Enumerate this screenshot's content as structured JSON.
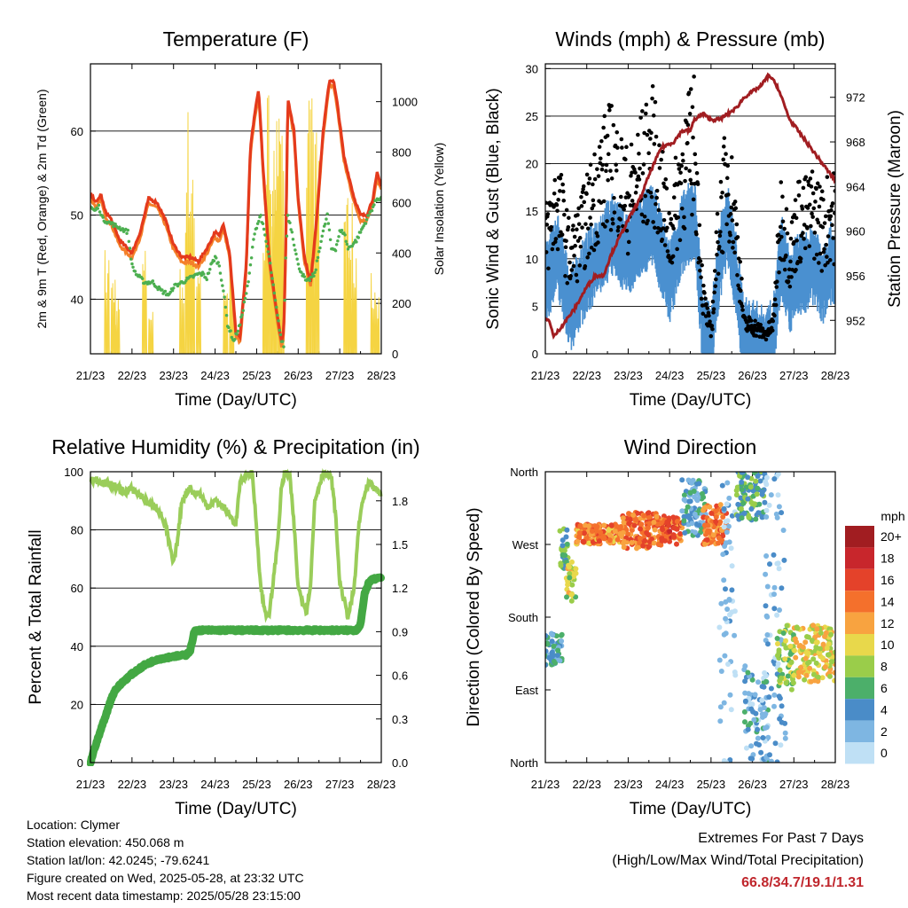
{
  "time_ticks": [
    "21/23",
    "22/23",
    "23/23",
    "24/23",
    "25/23",
    "26/23",
    "27/23",
    "28/23"
  ],
  "colors": {
    "temp_2m": "#e43a1c",
    "temp_9m": "#f4802a",
    "dewpoint": "#4caf50",
    "solar": "#f5d442",
    "wind": "#4a90d0",
    "gust": "#000000",
    "pressure": "#a11d21",
    "rh": "#9acd5a",
    "rain": "#43a843",
    "extremes": "#c0272d"
  },
  "chart_data": [
    {
      "type": "line",
      "title": "Temperature (F)",
      "xlabel": "Time (Day/UTC)",
      "ylabel": "2m & 9m T (Red, Orange) & 2m Td (Green)",
      "ylabel_right": "Solar Insolation (Yellow)",
      "xlim": [
        0,
        7
      ],
      "ylim": [
        33.5,
        68
      ],
      "ylim_right": [
        0,
        1150
      ],
      "yticks": [
        40,
        50,
        60
      ],
      "yticks_right": [
        0,
        200,
        400,
        600,
        800,
        1000
      ],
      "grid": true,
      "series": [
        {
          "key": "temp",
          "x": [
            0,
            0.15,
            0.25,
            0.35,
            0.5,
            0.7,
            0.9,
            1.0,
            1.2,
            1.4,
            1.6,
            1.8,
            2.0,
            2.2,
            2.4,
            2.6,
            2.8,
            3.0,
            3.1,
            3.2,
            3.35,
            3.5,
            3.6,
            3.75,
            3.85,
            3.95,
            4.05,
            4.15,
            4.3,
            4.5,
            4.6,
            4.65,
            4.7,
            4.75,
            4.9,
            5.0,
            5.15,
            5.3,
            5.45,
            5.6,
            5.75,
            5.85,
            5.95,
            6.1,
            6.25,
            6.35,
            6.5,
            6.65,
            6.8,
            6.9,
            7.0
          ],
          "y": [
            52.5,
            51.5,
            52.5,
            50.5,
            49.5,
            47,
            46,
            45.5,
            48,
            52,
            51.5,
            49.5,
            46.5,
            45,
            45,
            44.5,
            46,
            48,
            47.5,
            49,
            45.5,
            36,
            35.5,
            44,
            58,
            62,
            65,
            56,
            45,
            38,
            35,
            36,
            46,
            64,
            60,
            52,
            45,
            42,
            50,
            60,
            66,
            66,
            63,
            57,
            54,
            52,
            50,
            50,
            52,
            55,
            53.5
          ]
        },
        {
          "key": "dewpoint",
          "x": [
            0,
            0.1,
            0.2,
            0.3,
            0.5,
            0.7,
            0.9,
            1.0,
            1.1,
            1.3,
            1.5,
            1.7,
            1.9,
            2.0,
            2.2,
            2.4,
            2.6,
            2.7,
            2.8,
            2.9,
            3.0,
            3.1,
            3.2,
            3.3,
            3.45,
            3.6,
            3.8,
            3.95,
            4.1,
            4.3,
            4.5,
            4.6,
            4.65,
            4.7,
            4.75,
            4.85,
            5.0,
            5.2,
            5.4,
            5.55,
            5.7,
            5.8,
            5.9,
            6.0,
            6.1,
            6.2,
            6.4,
            6.6,
            6.8,
            6.9,
            7.0
          ],
          "y": [
            51,
            50.5,
            51,
            49.5,
            49,
            48.5,
            48,
            44,
            43,
            42,
            42,
            41,
            40.5,
            41.5,
            42,
            42.5,
            43,
            43,
            42.5,
            44,
            45,
            44,
            41,
            37,
            35,
            37,
            42,
            48,
            50,
            45,
            38,
            35,
            34.5,
            45,
            50,
            48,
            44,
            42,
            43,
            47,
            50,
            46,
            46,
            48,
            48,
            46,
            47,
            49,
            51,
            52,
            52
          ]
        }
      ],
      "solar_peaks": [
        {
          "x": 0.4,
          "y": 430
        },
        {
          "x": 0.55,
          "y": 350
        },
        {
          "x": 0.65,
          "y": 240
        },
        {
          "x": 1.3,
          "y": 430
        },
        {
          "x": 1.45,
          "y": 220
        },
        {
          "x": 2.2,
          "y": 360
        },
        {
          "x": 2.33,
          "y": 1000
        },
        {
          "x": 2.45,
          "y": 930
        },
        {
          "x": 2.6,
          "y": 380
        },
        {
          "x": 3.25,
          "y": 360
        },
        {
          "x": 3.4,
          "y": 340
        },
        {
          "x": 4.2,
          "y": 700
        },
        {
          "x": 4.3,
          "y": 1080
        },
        {
          "x": 4.4,
          "y": 1120
        },
        {
          "x": 4.5,
          "y": 980
        },
        {
          "x": 4.6,
          "y": 880
        },
        {
          "x": 5.25,
          "y": 1150
        },
        {
          "x": 5.35,
          "y": 1060
        },
        {
          "x": 5.45,
          "y": 900
        },
        {
          "x": 6.15,
          "y": 780
        },
        {
          "x": 6.25,
          "y": 600
        },
        {
          "x": 6.35,
          "y": 500
        },
        {
          "x": 6.8,
          "y": 330
        },
        {
          "x": 6.9,
          "y": 300
        }
      ]
    },
    {
      "type": "line",
      "title": "Winds (mph) & Pressure (mb)",
      "xlabel": "Time (Day/UTC)",
      "ylabel": "Sonic Wind & Gust (Blue, Black)",
      "ylabel_right": "Station Pressure (Maroon)",
      "xlim": [
        0,
        7
      ],
      "ylim": [
        0,
        30.5
      ],
      "ylim_right": [
        949,
        975
      ],
      "yticks": [
        0,
        5,
        10,
        15,
        20,
        25,
        30
      ],
      "yticks_right": [
        952,
        956,
        960,
        964,
        968,
        972
      ],
      "grid": true,
      "series": [
        {
          "key": "pressure",
          "x": [
            0,
            0.1,
            0.2,
            0.3,
            0.5,
            0.7,
            1.0,
            1.2,
            1.4,
            1.6,
            1.8,
            2.0,
            2.3,
            2.5,
            2.8,
            3.1,
            3.3,
            3.5,
            3.6,
            3.8,
            4.0,
            4.2,
            4.4,
            4.6,
            4.8,
            5.0,
            5.2,
            5.4,
            5.6,
            5.8,
            5.9,
            6.1,
            6.3,
            6.5,
            6.7,
            6.9,
            7.0
          ],
          "y": [
            952,
            952,
            950.5,
            951,
            952,
            953,
            955,
            956,
            956,
            958,
            959.5,
            961,
            963,
            965,
            967.5,
            968,
            969,
            969,
            970,
            970.5,
            970,
            970,
            970.5,
            971,
            972,
            972.5,
            973,
            974,
            973,
            971,
            970,
            969,
            968,
            967,
            966,
            965,
            964.5
          ]
        },
        {
          "key": "wind_mean",
          "x": [
            0,
            0.3,
            0.6,
            1.0,
            1.3,
            1.6,
            2.0,
            2.3,
            2.6,
            3.0,
            3.3,
            3.6,
            3.8,
            4.0,
            4.2,
            4.4,
            4.6,
            4.8,
            5.0,
            5.3,
            5.5,
            5.7,
            5.9,
            6.1,
            6.3,
            6.5,
            6.7,
            6.9,
            7.0
          ],
          "y": [
            8,
            11,
            5,
            9,
            11,
            13,
            11,
            13,
            14,
            8,
            13,
            15,
            3,
            1,
            10,
            14,
            9,
            2,
            2,
            1,
            2,
            11,
            7,
            9,
            9,
            10,
            8,
            10,
            9
          ]
        },
        {
          "key": "gust_mean",
          "x": [
            0,
            0.3,
            0.6,
            1.0,
            1.3,
            1.6,
            2.0,
            2.3,
            2.6,
            3.0,
            3.3,
            3.6,
            3.8,
            4.0,
            4.2,
            4.4,
            4.6,
            4.8,
            5.0,
            5.3,
            5.5,
            5.7,
            5.9,
            6.1,
            6.3,
            6.5,
            6.7,
            6.9,
            7.0
          ],
          "y": [
            12,
            16,
            10,
            14,
            18,
            20,
            16,
            19,
            21,
            12,
            19,
            22,
            6,
            2,
            14,
            19,
            13,
            3,
            3,
            2,
            3,
            15,
            10,
            14,
            14,
            15,
            13,
            15,
            14
          ]
        }
      ]
    },
    {
      "type": "line",
      "title": "Relative Humidity (%) & Precipitation (in)",
      "xlabel": "Time (Day/UTC)",
      "ylabel": "Percent & Total Rainfall",
      "xlim": [
        0,
        7
      ],
      "ylim": [
        0,
        100
      ],
      "ylim_right": [
        0,
        2.0
      ],
      "yticks": [
        0,
        20,
        40,
        60,
        80,
        100
      ],
      "yticks_right": [
        0.0,
        0.3,
        0.6,
        0.9,
        1.2,
        1.5,
        1.8
      ],
      "grid": true,
      "series": [
        {
          "key": "rh",
          "x": [
            0,
            0.2,
            0.4,
            0.6,
            0.8,
            1.0,
            1.2,
            1.4,
            1.6,
            1.8,
            1.9,
            2.0,
            2.1,
            2.2,
            2.4,
            2.5,
            2.6,
            2.7,
            2.8,
            2.9,
            3.0,
            3.2,
            3.4,
            3.5,
            3.6,
            3.8,
            3.9,
            4.0,
            4.1,
            4.2,
            4.3,
            4.5,
            4.6,
            4.7,
            4.8,
            4.9,
            5.0,
            5.2,
            5.3,
            5.4,
            5.6,
            5.8,
            5.9,
            6.0,
            6.2,
            6.35,
            6.45,
            6.55,
            6.7,
            6.85,
            7.0
          ],
          "y": [
            97,
            97,
            96,
            95,
            93,
            94,
            92,
            89,
            88,
            82,
            75,
            68,
            77,
            90,
            95,
            92,
            93,
            91,
            88,
            89,
            90,
            88,
            84,
            82,
            96,
            100,
            99,
            80,
            60,
            52,
            50,
            75,
            95,
            100,
            98,
            82,
            60,
            52,
            62,
            90,
            100,
            98,
            85,
            62,
            50,
            60,
            80,
            90,
            96,
            94,
            92
          ]
        },
        {
          "key": "rain",
          "x": [
            0,
            0.1,
            0.2,
            0.3,
            0.4,
            0.5,
            0.6,
            0.8,
            1.0,
            1.3,
            1.6,
            2.0,
            2.3,
            2.4,
            2.5,
            2.6,
            3.0,
            3.5,
            4.0,
            4.5,
            5.0,
            5.5,
            6.0,
            6.3,
            6.4,
            6.5,
            6.6,
            6.7,
            6.8,
            7.0
          ],
          "y": [
            0,
            0.1,
            0.18,
            0.27,
            0.35,
            0.44,
            0.5,
            0.56,
            0.61,
            0.67,
            0.71,
            0.73,
            0.74,
            0.77,
            0.9,
            0.91,
            0.91,
            0.91,
            0.91,
            0.91,
            0.91,
            0.91,
            0.91,
            0.91,
            0.91,
            0.95,
            1.16,
            1.24,
            1.26,
            1.27
          ]
        }
      ]
    },
    {
      "type": "scatter",
      "title": "Wind Direction",
      "xlabel": "Time (Day/UTC)",
      "ylabel": "Direction (Colored By Speed)",
      "xlim": [
        0,
        7
      ],
      "ylim": [
        0,
        360
      ],
      "ytick_labels": [
        "North",
        "East",
        "South",
        "West",
        "North"
      ],
      "yticks": [
        0,
        90,
        180,
        270,
        360
      ],
      "colorbar_title": "mph",
      "colorbar_labels": [
        "20+",
        "18",
        "16",
        "14",
        "12",
        "10",
        "8",
        "6",
        "4",
        "2",
        "0"
      ],
      "colorbar_colors": [
        "#a11d21",
        "#c8262c",
        "#e4422a",
        "#f4702c",
        "#f8a340",
        "#e8d84b",
        "#9acd4a",
        "#4caf6a",
        "#4a8cc8",
        "#7eb6e2",
        "#bfe0f5"
      ],
      "clusters": [
        {
          "x0": 0.0,
          "x1": 0.4,
          "y0": 120,
          "y1": 160,
          "c": 4
        },
        {
          "x0": 0.35,
          "x1": 0.55,
          "y0": 240,
          "y1": 290,
          "c": 6
        },
        {
          "x0": 0.5,
          "x1": 0.75,
          "y0": 200,
          "y1": 250,
          "c": 9
        },
        {
          "x0": 0.75,
          "x1": 1.8,
          "y0": 270,
          "y1": 295,
          "c": 13
        },
        {
          "x0": 1.8,
          "x1": 2.8,
          "y0": 265,
          "y1": 310,
          "c": 14
        },
        {
          "x0": 2.8,
          "x1": 3.3,
          "y0": 270,
          "y1": 305,
          "c": 15
        },
        {
          "x0": 3.3,
          "x1": 3.9,
          "y0": 280,
          "y1": 350,
          "c": 4
        },
        {
          "x0": 3.8,
          "x1": 4.4,
          "y0": 270,
          "y1": 320,
          "c": 14
        },
        {
          "x0": 4.2,
          "x1": 4.6,
          "y0": 0,
          "y1": 360,
          "c": 1
        },
        {
          "x0": 4.6,
          "x1": 5.3,
          "y0": 300,
          "y1": 360,
          "c": 6
        },
        {
          "x0": 4.8,
          "x1": 5.4,
          "y0": 0,
          "y1": 120,
          "c": 3
        },
        {
          "x0": 5.3,
          "x1": 5.8,
          "y0": 0,
          "y1": 360,
          "c": 2
        },
        {
          "x0": 5.6,
          "x1": 6.0,
          "y0": 90,
          "y1": 170,
          "c": 8
        },
        {
          "x0": 6.0,
          "x1": 7.0,
          "y0": 100,
          "y1": 170,
          "c": 10
        }
      ]
    }
  ],
  "info": {
    "location": "Location: Clymer",
    "elevation": "Station elevation: 450.068 m",
    "latlon": "Station lat/lon: 42.0245; -79.6241",
    "created": "Figure created on Wed, 2025-05-28, at 23:32 UTC",
    "recent": "Most recent data timestamp: 2025/05/28 23:15:00"
  },
  "extremes": {
    "title": "Extremes For Past 7 Days",
    "subtitle": "(High/Low/Max Wind/Total Precipitation)",
    "values": "66.8/34.7/19.1/1.31"
  }
}
